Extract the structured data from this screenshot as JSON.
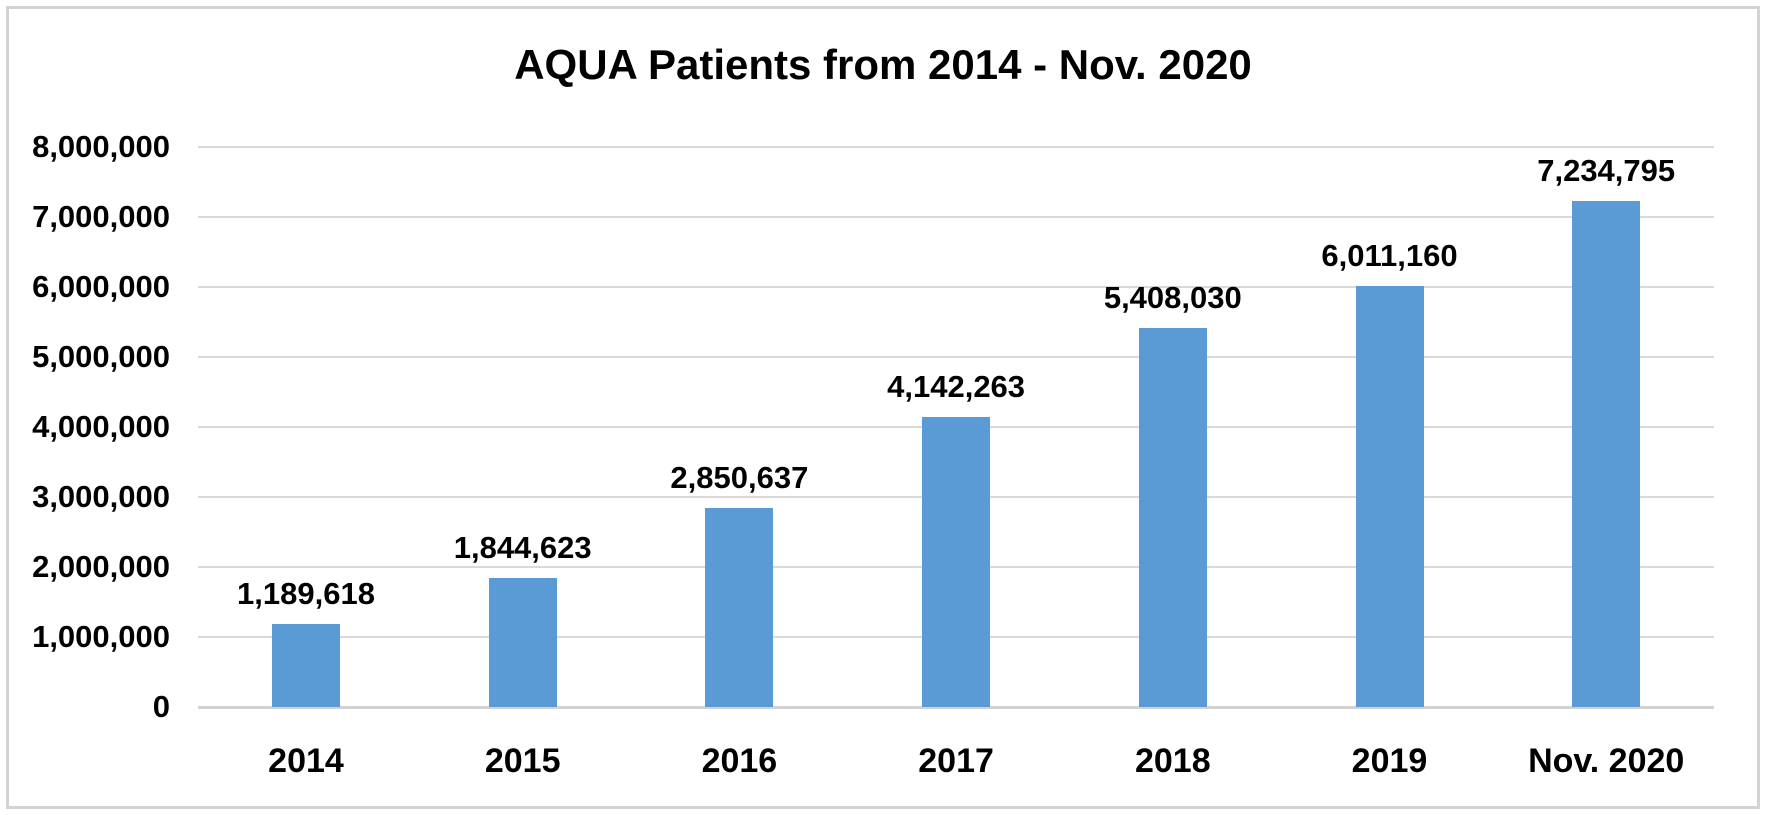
{
  "frame": {
    "background_color": "#ffffff",
    "border_color": "#d3d3d3"
  },
  "chart_data": {
    "type": "bar",
    "title": "AQUA Patients from 2014 - Nov. 2020",
    "categories": [
      "2014",
      "2015",
      "2016",
      "2017",
      "2018",
      "2019",
      "Nov. 2020"
    ],
    "values": [
      1189618,
      1844623,
      2850637,
      4142263,
      5408030,
      6011160,
      7234795
    ],
    "value_labels": [
      "1,189,618",
      "1,844,623",
      "2,850,637",
      "4,142,263",
      "5,408,030",
      "6,011,160",
      "7,234,795"
    ],
    "xlabel": "",
    "ylabel": "",
    "ylim": [
      0,
      8000000
    ],
    "ytick_step": 1000000,
    "ytick_labels": [
      "0",
      "1,000,000",
      "2,000,000",
      "3,000,000",
      "4,000,000",
      "5,000,000",
      "6,000,000",
      "7,000,000",
      "8,000,000"
    ],
    "grid": true,
    "legend": "none",
    "bar_color": "#5b9bd5",
    "gridline_color": "#d9d9d9",
    "axis_line_color": "#d2d2d2",
    "text_color": "#000000"
  }
}
